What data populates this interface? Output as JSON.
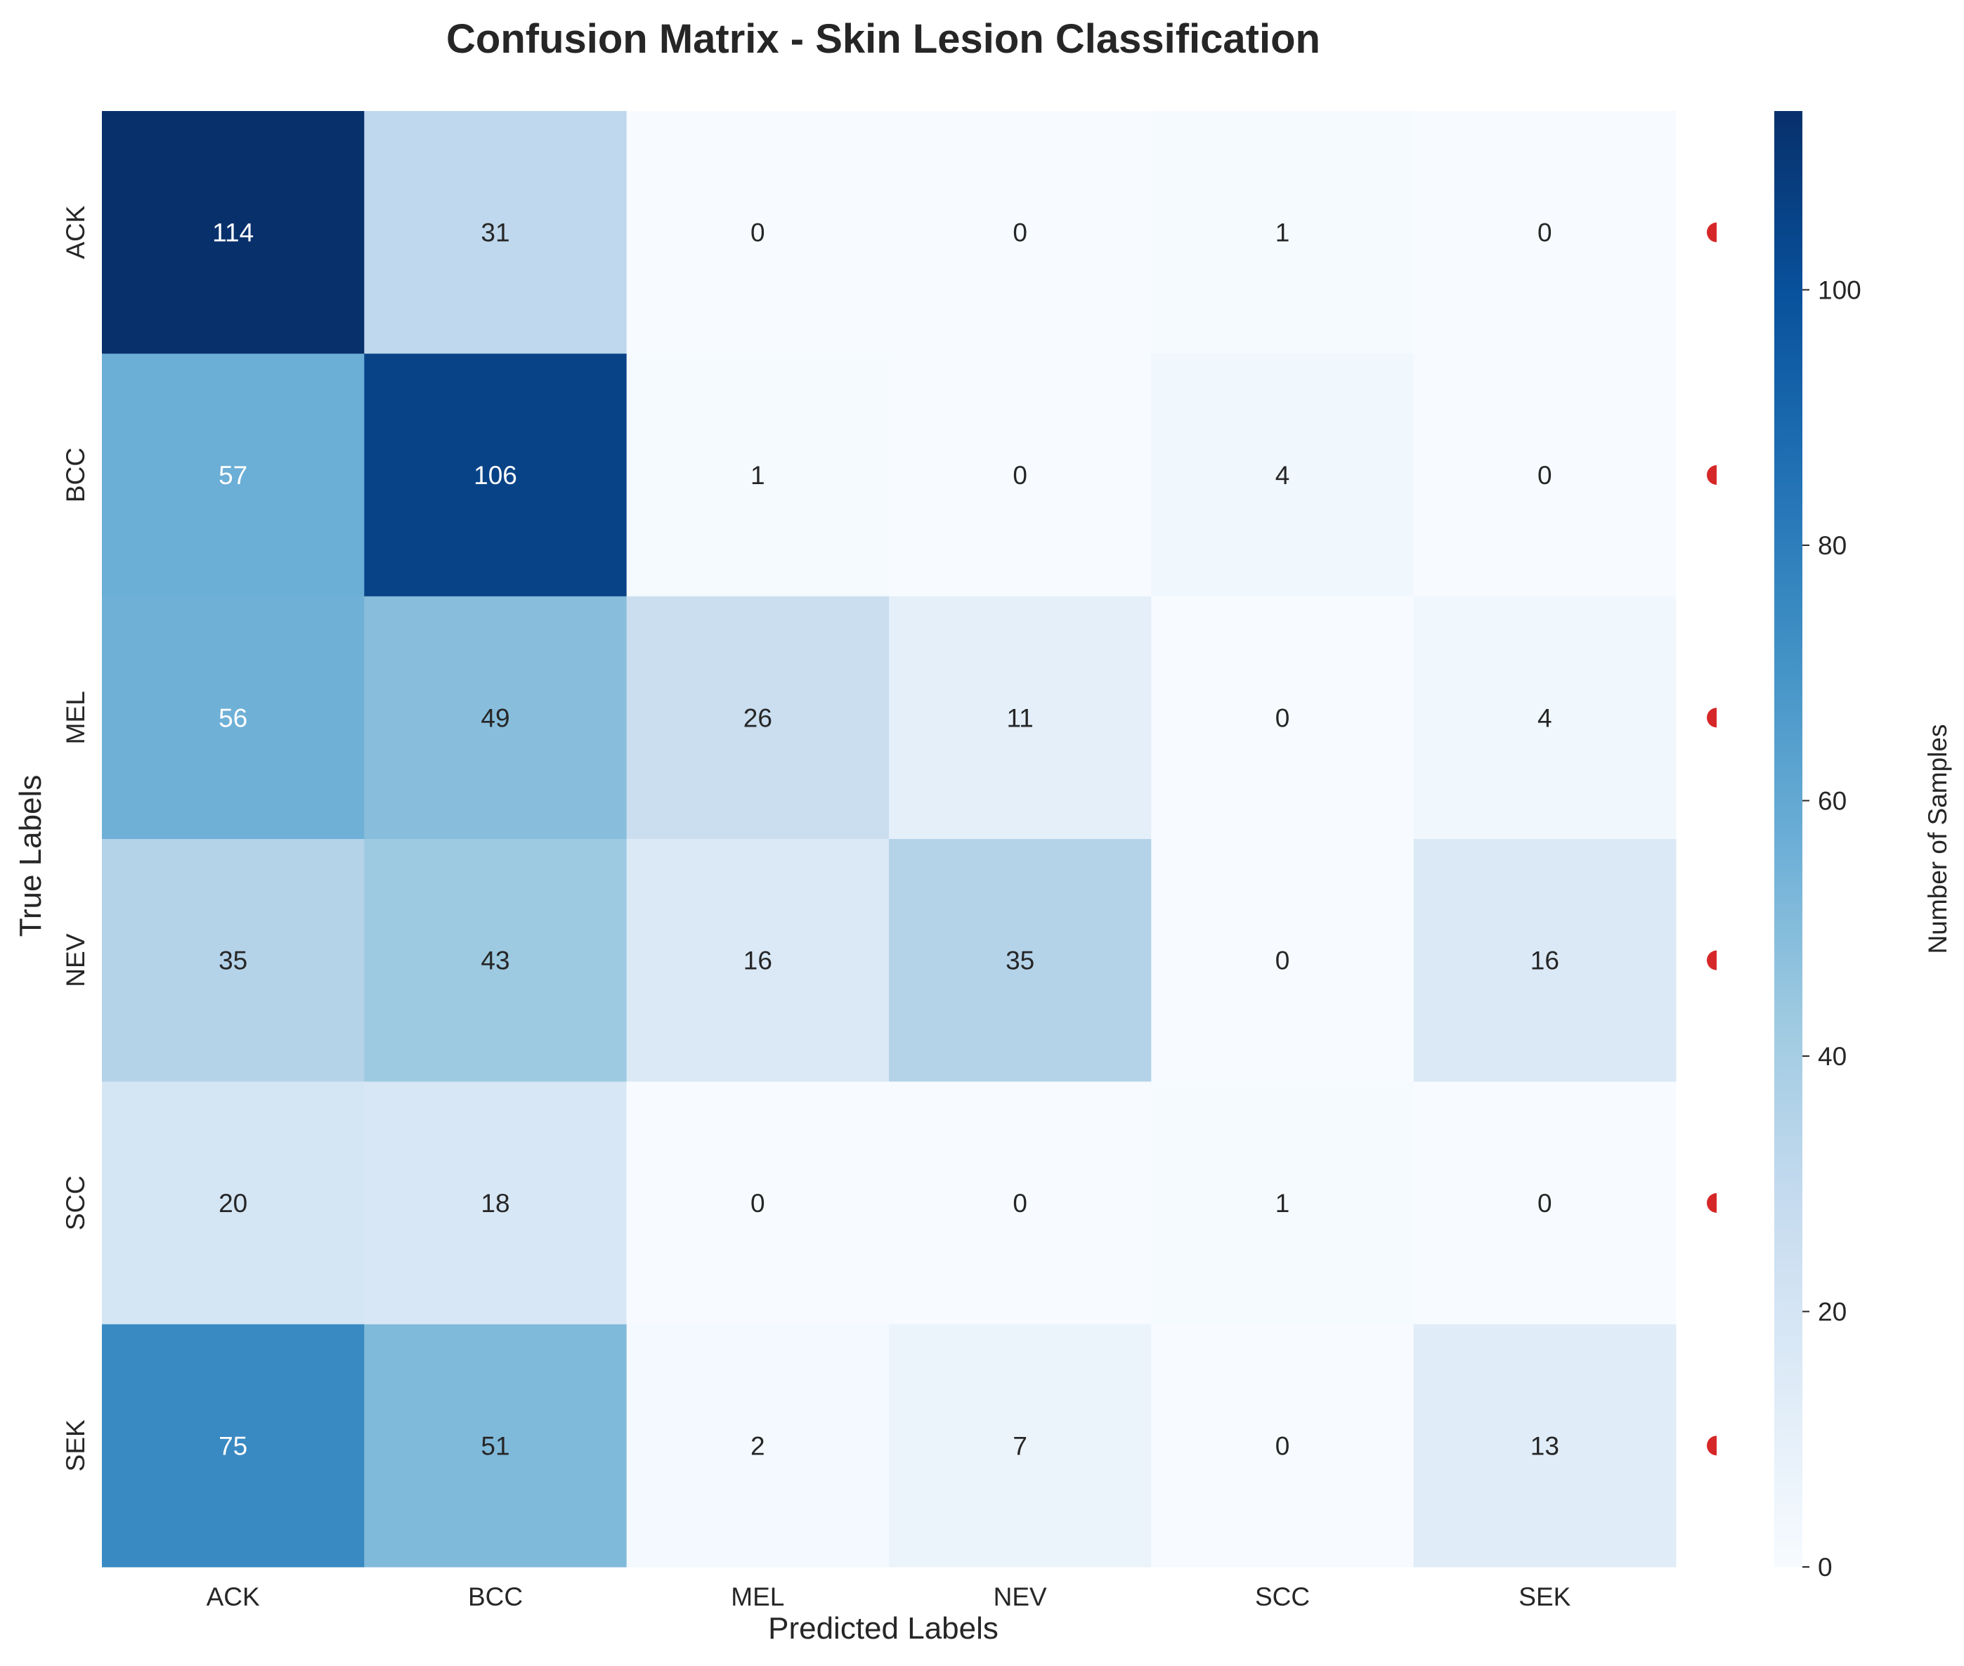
{
  "chart_data": {
    "type": "heatmap",
    "title": "Confusion Matrix - Skin Lesion Classification",
    "xlabel": "Predicted Labels",
    "ylabel": "True Labels",
    "x_categories": [
      "ACK",
      "BCC",
      "MEL",
      "NEV",
      "SCC",
      "SEK"
    ],
    "y_categories": [
      "ACK",
      "BCC",
      "MEL",
      "NEV",
      "SCC",
      "SEK"
    ],
    "values": [
      [
        114,
        31,
        0,
        0,
        1,
        0
      ],
      [
        57,
        106,
        1,
        0,
        4,
        0
      ],
      [
        56,
        49,
        26,
        11,
        0,
        4
      ],
      [
        35,
        43,
        16,
        35,
        0,
        16
      ],
      [
        20,
        18,
        0,
        0,
        1,
        0
      ],
      [
        75,
        51,
        2,
        7,
        0,
        13
      ]
    ],
    "colormap": "Blues",
    "colorbar": {
      "label": "Number of Samples",
      "range": [
        0,
        114
      ],
      "ticks": [
        "0",
        "20",
        "40",
        "60",
        "80",
        "100"
      ]
    },
    "row_markers_color": "#d62728",
    "grid": false
  }
}
